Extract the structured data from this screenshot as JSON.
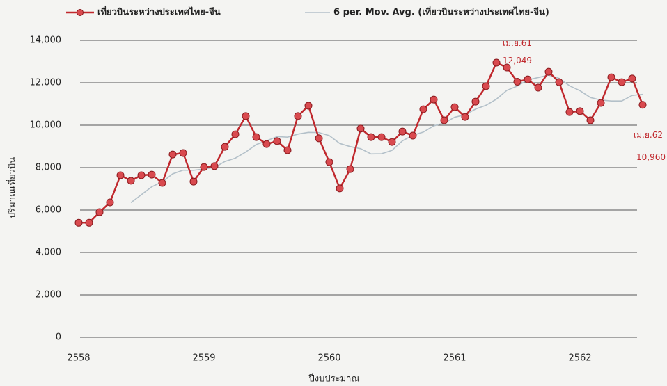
{
  "chart_data": {
    "type": "line",
    "xlabel": "ปีงบประมาณ",
    "ylabel": "ปริมาณเที่ยวบิน",
    "categories": [
      "2558",
      null,
      null,
      null,
      null,
      null,
      null,
      null,
      null,
      null,
      null,
      null,
      "2559",
      null,
      null,
      null,
      null,
      null,
      null,
      null,
      null,
      null,
      null,
      null,
      "2560",
      null,
      null,
      null,
      null,
      null,
      null,
      null,
      null,
      null,
      null,
      null,
      "2561",
      null,
      null,
      null,
      null,
      null,
      null,
      null,
      null,
      null,
      null,
      null,
      "2562",
      null,
      null,
      null,
      null,
      null,
      null
    ],
    "ylim": [
      0,
      14000
    ],
    "yticks": [
      0,
      {
        "value": 2000,
        "label": "2,000"
      },
      {
        "value": 4000,
        "label": "4,000"
      },
      {
        "value": 6000,
        "label": "6,000"
      },
      {
        "value": 8000,
        "label": "8,000"
      },
      {
        "value": 10000,
        "label": "10,000"
      },
      {
        "value": 12000,
        "label": "12,000"
      },
      {
        "value": 14000,
        "label": "14,000"
      }
    ],
    "grid": true,
    "legend": "top",
    "series": [
      {
        "name": "เที่ยวบินระหว่างประเทศไทย-จีน",
        "color": "#c0282d",
        "marker": true,
        "values": [
          5400,
          5400,
          5900,
          6360,
          7640,
          7380,
          7640,
          7670,
          7280,
          8620,
          8690,
          7340,
          8030,
          8070,
          8980,
          9570,
          10430,
          9440,
          9110,
          9250,
          8820,
          10430,
          10920,
          9380,
          8260,
          7020,
          7930,
          9840,
          9440,
          9440,
          9210,
          9700,
          9510,
          10750,
          11210,
          10230,
          10850,
          10390,
          11110,
          11840,
          12950,
          12720,
          12049,
          12160,
          11770,
          12520,
          12030,
          10620,
          10660,
          10230,
          11050,
          12260,
          12030,
          12200,
          10960
        ],
        "value_labels": [
          null,
          null,
          null,
          null,
          null,
          null,
          null,
          null,
          null,
          null,
          null,
          null,
          null,
          null,
          null,
          null,
          null,
          null,
          null,
          null,
          null,
          null,
          null,
          null,
          null,
          null,
          null,
          null,
          null,
          null,
          null,
          null,
          null,
          null,
          null,
          null,
          null,
          null,
          null,
          null,
          null,
          null,
          "12,049",
          null,
          null,
          null,
          null,
          null,
          null,
          null,
          null,
          null,
          null,
          null,
          "10,960"
        ],
        "point_labels": [
          null,
          null,
          null,
          null,
          null,
          null,
          null,
          null,
          null,
          null,
          null,
          null,
          null,
          null,
          null,
          null,
          null,
          null,
          null,
          null,
          null,
          null,
          null,
          null,
          null,
          null,
          null,
          null,
          null,
          null,
          null,
          null,
          null,
          null,
          null,
          null,
          null,
          null,
          null,
          null,
          null,
          null,
          "เม.ย.61",
          null,
          null,
          null,
          null,
          null,
          null,
          null,
          null,
          null,
          null,
          null,
          "เม.ย.62"
        ]
      },
      {
        "name": "6 per. Mov. Avg. (เที่ยวบินระหว่างประเทศไทย-จีน)",
        "color": "#b3c0c9",
        "marker": false,
        "values": [
          null,
          null,
          null,
          null,
          null,
          6347,
          6720,
          7098,
          7328,
          7705,
          7880,
          7873,
          7938,
          8005,
          8288,
          8447,
          8737,
          9087,
          9267,
          9463,
          9437,
          9580,
          9662,
          9652,
          9510,
          9138,
          8990,
          8892,
          8645,
          8655,
          8813,
          9260,
          9523,
          9675,
          9970,
          10102,
          10375,
          10490,
          10757,
          10938,
          11228,
          11643,
          11843,
          12138,
          12248,
          12362,
          12208,
          11858,
          11627,
          11305,
          11185,
          11142,
          11142,
          11405,
          11455
        ]
      }
    ]
  }
}
